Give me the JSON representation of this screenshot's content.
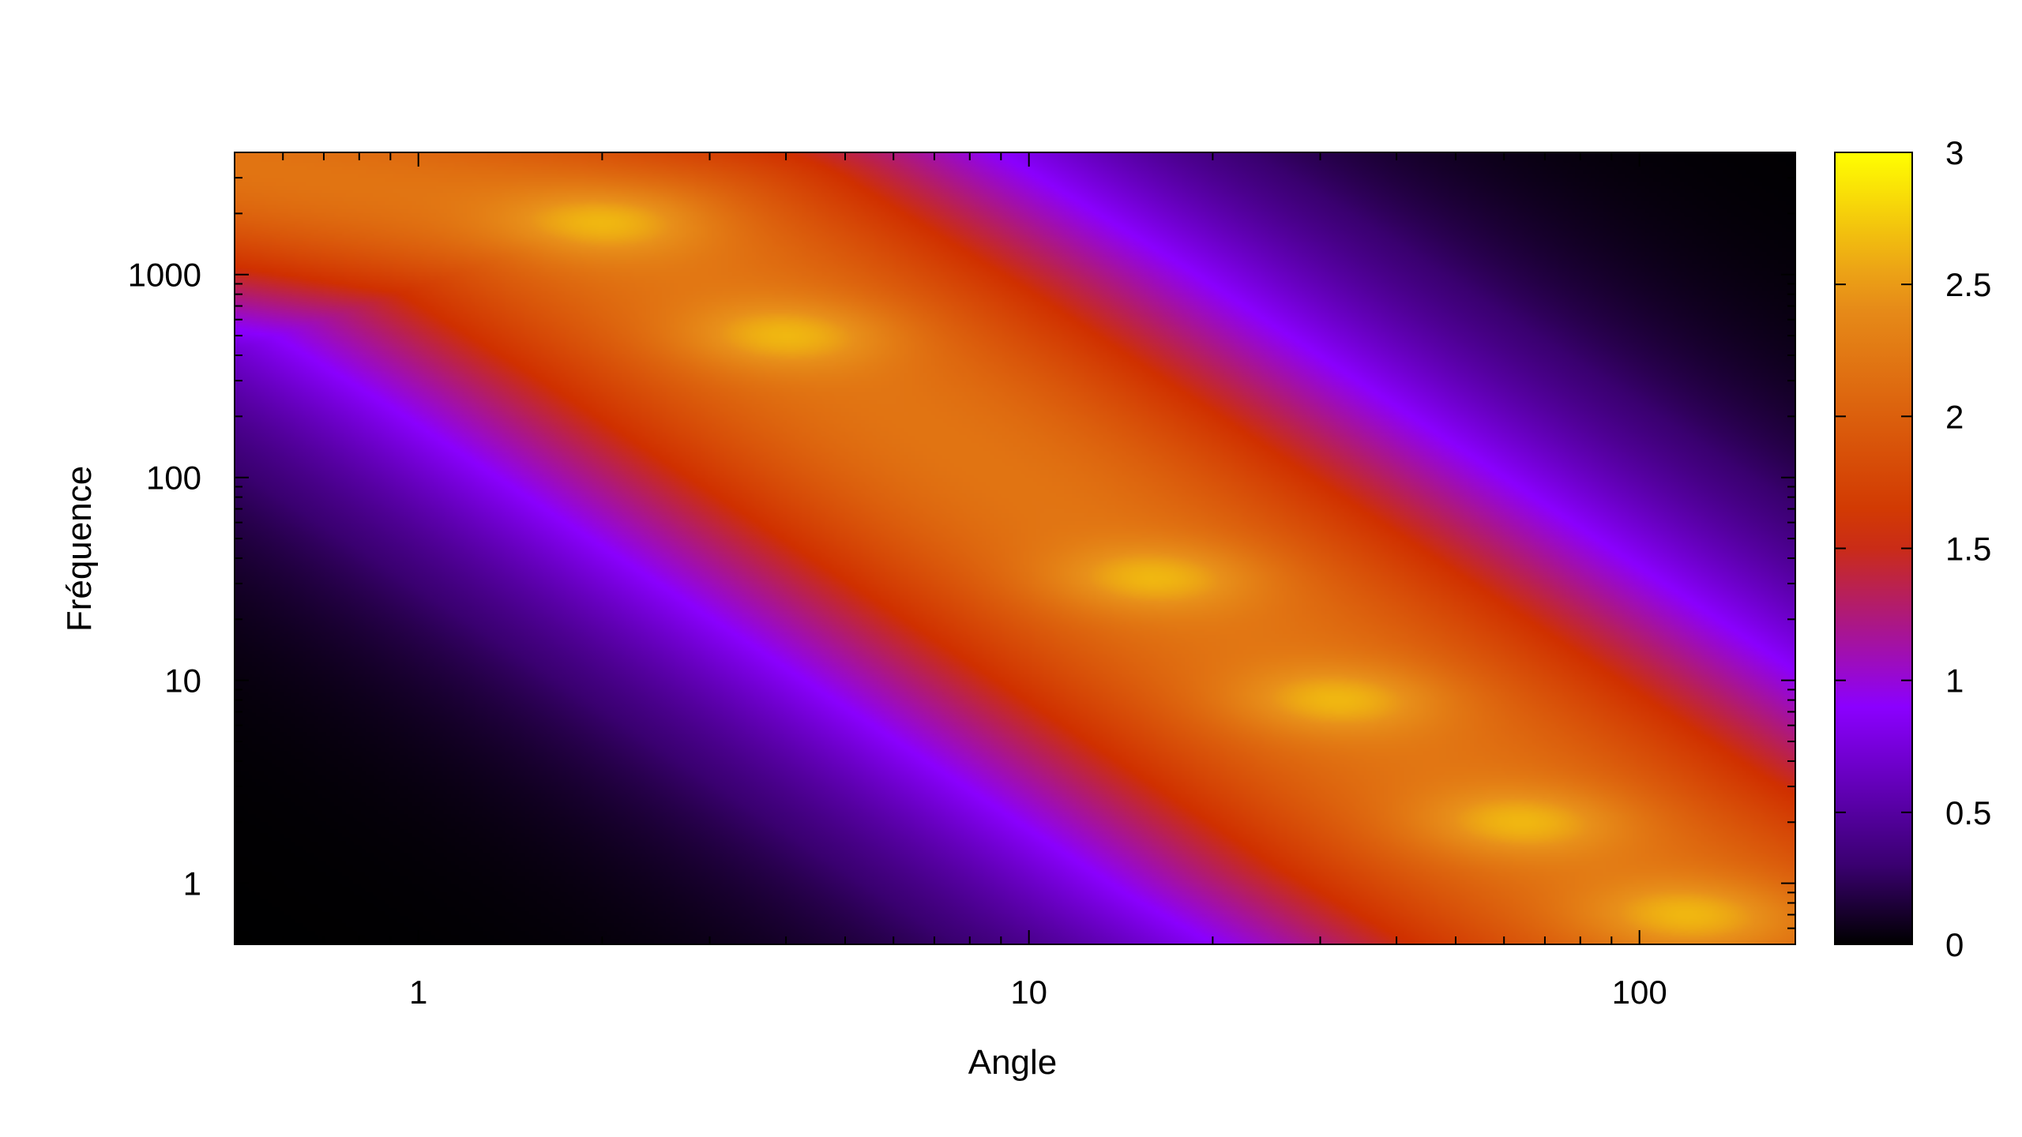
{
  "chart_data": {
    "type": "heatmap",
    "title": "",
    "xlabel": "Angle",
    "ylabel": "Fréquence",
    "x_scale": "log",
    "y_scale": "log",
    "xlim": [
      0.5,
      180
    ],
    "ylim": [
      0.5,
      4000
    ],
    "x_ticks": [
      {
        "value": 1,
        "label": "1"
      },
      {
        "value": 10,
        "label": "10"
      },
      {
        "value": 100,
        "label": "100"
      }
    ],
    "y_ticks": [
      {
        "value": 1,
        "label": "1"
      },
      {
        "value": 10,
        "label": "10"
      },
      {
        "value": 100,
        "label": "100"
      },
      {
        "value": 1000,
        "label": "1000"
      }
    ],
    "colorbar": {
      "range": [
        0,
        3
      ],
      "ticks": [
        {
          "value": 0,
          "label": "0"
        },
        {
          "value": 0.5,
          "label": "0.5"
        },
        {
          "value": 1,
          "label": "1"
        },
        {
          "value": 1.5,
          "label": "1.5"
        },
        {
          "value": 2,
          "label": "2"
        },
        {
          "value": 2.5,
          "label": "2.5"
        },
        {
          "value": 3,
          "label": "3"
        }
      ],
      "colormap": "black-purple-red-orange-yellow",
      "stops": [
        "#000000",
        "#3a0070",
        "#8b00ff",
        "#d03000",
        "#e8901a",
        "#ffff00"
      ]
    },
    "ridge": {
      "description_points": [
        {
          "x": 0.5,
          "y": 3500
        },
        {
          "x": 2,
          "y": 1800
        },
        {
          "x": 4,
          "y": 500
        },
        {
          "x": 16,
          "y": 32
        },
        {
          "x": 32,
          "y": 8
        },
        {
          "x": 64,
          "y": 2
        },
        {
          "x": 128,
          "y": 0.6
        }
      ],
      "peaks": [
        {
          "x": 2,
          "y": 1800,
          "value": 2.6
        },
        {
          "x": 4,
          "y": 500,
          "value": 2.6
        },
        {
          "x": 16,
          "y": 32,
          "value": 2.6
        },
        {
          "x": 32,
          "y": 8,
          "value": 2.6
        },
        {
          "x": 64,
          "y": 2,
          "value": 2.7
        },
        {
          "x": 120,
          "y": 0.7,
          "value": 2.5
        }
      ]
    },
    "grid": false,
    "legend": "colorbar-right"
  }
}
